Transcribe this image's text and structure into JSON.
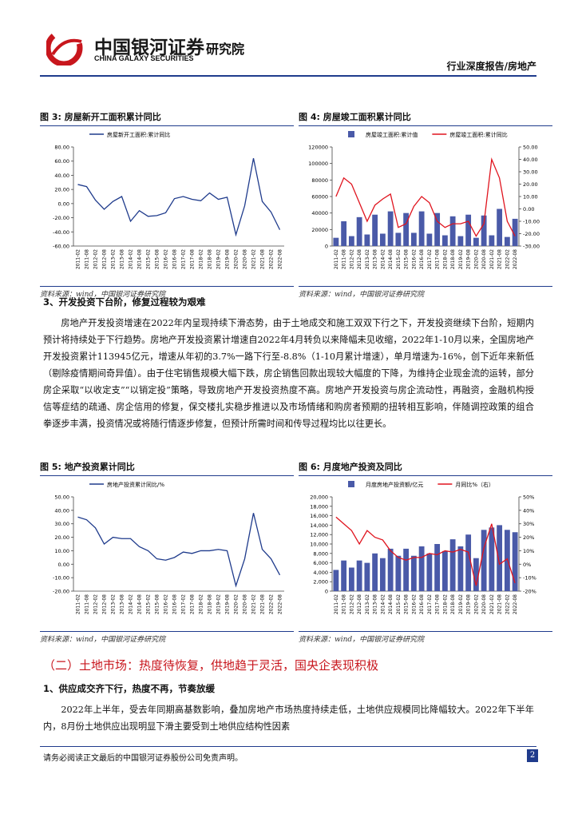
{
  "header": {
    "brand": "中国银河证券",
    "brand_en": "CHINA GALAXY SECURITIES",
    "institute": "研究院",
    "report_type": "行业深度报告/房地产"
  },
  "figures": [
    {
      "title": "图 3:  房屋新开工面积累计同比",
      "source": "资料来源：wind，中国银河证券研究院",
      "chart": {
        "type": "line",
        "categories": [
          "2011-02",
          "2011-08",
          "2012-02",
          "2012-08",
          "2013-02",
          "2013-08",
          "2014-02",
          "2014-08",
          "2015-02",
          "2015-08",
          "2016-02",
          "2016-08",
          "2017-02",
          "2017-08",
          "2018-02",
          "2018-08",
          "2019-02",
          "2019-08",
          "2020-02",
          "2020-08",
          "2021-02",
          "2021-08",
          "2022-02",
          "2022-08"
        ],
        "series": [
          {
            "name": "房屋新开工面积:累计同比",
            "color": "#1f3b8c",
            "values": [
              27,
              24,
              5,
              -8,
              3,
              10,
              -25,
              -10,
              -18,
              -17,
              -13,
              7,
              10,
              6,
              4,
              15,
              6,
              9,
              -44,
              -3,
              64,
              3,
              -12,
              -37
            ]
          }
        ],
        "ylim": [
          -60,
          80
        ],
        "yticks": [
          {
            "value": -60,
            "label": "-60.00"
          },
          {
            "value": -40,
            "label": "-40.00"
          },
          {
            "value": -20,
            "label": "-20.00"
          },
          {
            "value": 0,
            "label": "0.00"
          },
          {
            "value": 20,
            "label": "20.00"
          },
          {
            "value": 40,
            "label": "40.00"
          },
          {
            "value": 60,
            "label": "60.00"
          },
          {
            "value": 80,
            "label": "80.00"
          }
        ]
      }
    },
    {
      "title": "图 4:  房屋竣工面积累计同比",
      "source": "资料来源：wind，中国银河证券研究院",
      "chart": {
        "type": "bar",
        "categories": [
          "2011-02",
          "2011-08",
          "2012-02",
          "2012-08",
          "2013-02",
          "2013-08",
          "2014-02",
          "2014-08",
          "2015-02",
          "2015-08",
          "2016-02",
          "2016-08",
          "2017-02",
          "2017-08",
          "2018-02",
          "2018-08",
          "2019-02",
          "2019-08",
          "2020-02",
          "2020-08",
          "2021-02",
          "2021-08",
          "2022-02",
          "2022-08"
        ],
        "series": [
          {
            "name": "房屋竣工面积:累计值",
            "color": "#4a5aa8",
            "values": [
              10000,
              30000,
              12000,
              35000,
              14000,
              38000,
              15000,
              42000,
              16000,
              40000,
              16000,
              42000,
              15000,
              40000,
              13000,
              36000,
              12000,
              38000,
              10000,
              37000,
              13000,
              45000,
              11000,
              33000
            ]
          },
          {
            "name": "房屋竣工面积:累计同比",
            "color": "#e0141e",
            "type": "line",
            "axis": "y2",
            "values": [
              10,
              25,
              20,
              5,
              -10,
              3,
              8,
              12,
              -15,
              -12,
              2,
              10,
              5,
              -10,
              -15,
              -12,
              -12,
              -10,
              -22,
              -12,
              40,
              25,
              -10,
              -22
            ]
          }
        ],
        "ylim": [
          0,
          120000
        ],
        "yticks": [
          0,
          20000,
          40000,
          60000,
          80000,
          100000,
          120000
        ],
        "y2lim": [
          -30,
          50
        ],
        "y2ticks": [
          {
            "value": -30,
            "label": "-30.00"
          },
          {
            "value": -20,
            "label": "-20.00"
          },
          {
            "value": -10,
            "label": "-10.00"
          },
          {
            "value": 0,
            "label": "0.00"
          },
          {
            "value": 10,
            "label": "10.00"
          },
          {
            "value": 20,
            "label": "20.00"
          },
          {
            "value": 30,
            "label": "30.00"
          },
          {
            "value": 40,
            "label": "40.00"
          },
          {
            "value": 50,
            "label": "50.00"
          }
        ]
      }
    },
    {
      "title": "图 5:  地产投资累计同比",
      "source": "资料来源：wind，中国银河证券研究院",
      "chart": {
        "type": "line",
        "categories": [
          "2011-02",
          "2011-08",
          "2012-02",
          "2012-08",
          "2013-02",
          "2013-08",
          "2014-02",
          "2014-08",
          "2015-02",
          "2015-08",
          "2016-02",
          "2016-08",
          "2017-02",
          "2017-08",
          "2018-02",
          "2018-08",
          "2019-02",
          "2019-08",
          "2020-02",
          "2020-08",
          "2021-02",
          "2021-08",
          "2022-02",
          "2022-08"
        ],
        "series": [
          {
            "name": "房地产投资累计同比/%",
            "color": "#1f3b8c",
            "values": [
              35,
              33,
              27,
              15,
              20,
              19,
              19,
              13,
              10,
              4,
              3,
              5,
              9,
              8,
              10,
              10,
              11,
              10,
              -16,
              4,
              38,
              11,
              4,
              -8
            ]
          }
        ],
        "ylim": [
          -20,
          50
        ],
        "yticks": [
          {
            "value": -20,
            "label": "-20.00"
          },
          {
            "value": -10,
            "label": "-10.00"
          },
          {
            "value": 0,
            "label": "0.00"
          },
          {
            "value": 10,
            "label": "10.00"
          },
          {
            "value": 20,
            "label": "20.00"
          },
          {
            "value": 30,
            "label": "30.00"
          },
          {
            "value": 40,
            "label": "40.00"
          },
          {
            "value": 50,
            "label": "50.00"
          }
        ]
      }
    },
    {
      "title": "图 6:  月度地产投资及同比",
      "source": "资料来源：wind，中国银河证券研究院",
      "chart": {
        "type": "bar",
        "categories": [
          "2011-02",
          "2011-08",
          "2012-02",
          "2012-08",
          "2013-02",
          "2013-08",
          "2014-02",
          "2014-08",
          "2015-02",
          "2015-08",
          "2016-02",
          "2016-08",
          "2017-02",
          "2017-08",
          "2018-02",
          "2018-08",
          "2019-02",
          "2019-08",
          "2020-02",
          "2020-08",
          "2021-02",
          "2021-08",
          "2022-02",
          "2022-08"
        ],
        "series": [
          {
            "name": "月度房地产投资额/亿元",
            "color": "#4a5aa8",
            "values": [
              4500,
              6500,
              5000,
              6500,
              6000,
              8000,
              7000,
              9000,
              7500,
              9000,
              7500,
              9500,
              8000,
              10000,
              8500,
              11000,
              9500,
              12000,
              7000,
              13000,
              13500,
              14000,
              13000,
              12500
            ]
          },
          {
            "name": "月同比%（右）",
            "color": "#e0141e",
            "type": "line",
            "axis": "y2",
            "values": [
              35,
              30,
              25,
              15,
              25,
              20,
              18,
              10,
              5,
              3,
              5,
              5,
              8,
              7,
              10,
              9,
              11,
              9,
              -16,
              12,
              30,
              0,
              4,
              -14
            ]
          }
        ],
        "ylim": [
          0,
          20000
        ],
        "yticks": [
          {
            "value": 0,
            "label": "0"
          },
          {
            "value": 2000,
            "label": "2,000"
          },
          {
            "value": 4000,
            "label": "4,000"
          },
          {
            "value": 6000,
            "label": "6,000"
          },
          {
            "value": 8000,
            "label": "8,000"
          },
          {
            "value": 10000,
            "label": "10,000"
          },
          {
            "value": 12000,
            "label": "12,000"
          },
          {
            "value": 14000,
            "label": "14,000"
          },
          {
            "value": 16000,
            "label": "16,000"
          },
          {
            "value": 18000,
            "label": "18,000"
          },
          {
            "value": 20000,
            "label": "20,000"
          }
        ],
        "y2lim": [
          -20,
          50
        ],
        "y2ticks": [
          {
            "value": -20,
            "label": "-20%"
          },
          {
            "value": -10,
            "label": "-10%"
          },
          {
            "value": 0,
            "label": "0%"
          },
          {
            "value": 10,
            "label": "10%"
          },
          {
            "value": 20,
            "label": "20%"
          },
          {
            "value": 30,
            "label": "30%"
          },
          {
            "value": 40,
            "label": "40%"
          },
          {
            "value": 50,
            "label": "50%"
          }
        ]
      }
    }
  ],
  "section3": {
    "heading": "3、开发投资下台阶，修复过程较为艰难",
    "paragraph": "房地产开发投资增速在2022年内呈现持续下滑态势，由于土地成交和施工双双下行之下，开发投资继续下台阶，短期内预计将持续处于下行趋势。房地产开发投资累计增速自2022年4月转负以来降幅未见收缩，2022年1-10月以来，全国房地产开发投资累计113945亿元，增速从年初的3.7%一路下行至-8.8%（1-10月累计增速），单月增速为-16%，创下近年来新低（剔除疫情期间奇异值）。由于住宅销售规模大幅下跌，房企销售回款出现较大幅度的下降，为维持企业现金流的运转，部分房企采取“以收定支”“以销定投”策略，导致房地产开发投资热度不高。房地产开发投资与房企流动性，再融资，金融机构授信等症结的疏通、房企信用的修复，保交楼扎实稳步推进以及市场情绪和购房者预期的扭转相互影响，伴随调控政策的组合拳逐步丰满，投资情况或将随行情逐步修复，但预计所需时间和传导过程均比以往更长。"
  },
  "section_land": {
    "heading": "（二）土地市场：热度待恢复，供地趋于灵活，国央企表现积极",
    "subheading": "1、供应成交齐下行，热度不再，节奏放缓",
    "paragraph": "2022年上半年，受去年同期高基数影响，叠加房地产市场热度持续走低，土地供应规模同比降幅较大。2022年下半年内，8月份土地供应出现明显下滑主要受到土地供应结构性因素"
  },
  "footer": {
    "disclaimer": "请务必阅读正文最后的中国银河证券股份公司免责声明。",
    "page": "2"
  }
}
